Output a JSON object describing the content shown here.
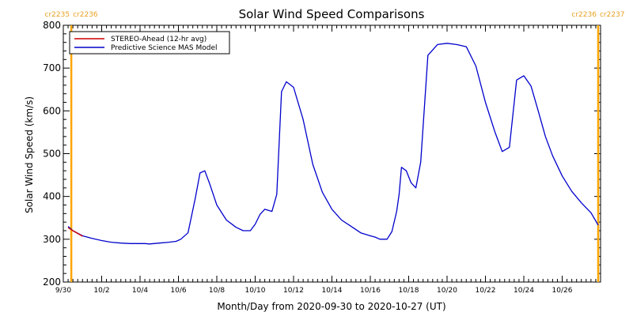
{
  "chart_data": {
    "type": "line",
    "title": "Solar Wind Speed Comparisons",
    "xlabel": "Month/Day from 2020-09-30 to 2020-10-27 (UT)",
    "ylabel": "Solar Wind Speed (km/s)",
    "ylim": [
      200,
      800
    ],
    "yticks": [
      200,
      300,
      400,
      500,
      600,
      700,
      800
    ],
    "xlim": [
      "2020-09-30",
      "2020-10-28"
    ],
    "xticks": [
      {
        "date": "2020-09-30",
        "label": "9/30"
      },
      {
        "date": "2020-10-02",
        "label": "10/2"
      },
      {
        "date": "2020-10-04",
        "label": "10/4"
      },
      {
        "date": "2020-10-06",
        "label": "10/6"
      },
      {
        "date": "2020-10-08",
        "label": "10/8"
      },
      {
        "date": "2020-10-10",
        "label": "10/10"
      },
      {
        "date": "2020-10-12",
        "label": "10/12"
      },
      {
        "date": "2020-10-14",
        "label": "10/14"
      },
      {
        "date": "2020-10-16",
        "label": "10/16"
      },
      {
        "date": "2020-10-18",
        "label": "10/18"
      },
      {
        "date": "2020-10-20",
        "label": "10/20"
      },
      {
        "date": "2020-10-22",
        "label": "10/22"
      },
      {
        "date": "2020-10-24",
        "label": "10/24"
      },
      {
        "date": "2020-10-26",
        "label": "10/26"
      }
    ],
    "legend": {
      "position": "top-left"
    },
    "carrington_markers": [
      {
        "date": "2020-09-30T10:00",
        "label_left": "cr2235",
        "label_right": "cr2236",
        "color": "#ffa500"
      },
      {
        "date": "2020-10-27T21:00",
        "label_left": "cr2236",
        "label_right": "cr2237",
        "color": "#ffa500"
      }
    ],
    "series": [
      {
        "name": "STEREO-Ahead (12-hr avg)",
        "color": "#cc0000",
        "x": [
          "2020-09-30T06:00",
          "2020-09-30T12:00",
          "2020-10-01T00:00"
        ],
        "values": [
          327,
          320,
          307
        ]
      },
      {
        "name": "Predictive Science MAS Model",
        "color": "#0000cc",
        "x": [
          "2020-09-30T06:00",
          "2020-09-30T12:00",
          "2020-10-01T00:00",
          "2020-10-01T12:00",
          "2020-10-02T00:00",
          "2020-10-02T12:00",
          "2020-10-03T00:00",
          "2020-10-03T12:00",
          "2020-10-04T00:00",
          "2020-10-04T06:00",
          "2020-10-04T12:00",
          "2020-10-05T00:00",
          "2020-10-05T12:00",
          "2020-10-05T21:00",
          "2020-10-06T03:00",
          "2020-10-06T12:00",
          "2020-10-06T21:00",
          "2020-10-07T03:00",
          "2020-10-07T09:00",
          "2020-10-07T15:00",
          "2020-10-08T00:00",
          "2020-10-08T12:00",
          "2020-10-09T00:00",
          "2020-10-09T09:00",
          "2020-10-09T18:00",
          "2020-10-10T00:00",
          "2020-10-10T06:00",
          "2020-10-10T12:00",
          "2020-10-10T21:00",
          "2020-10-11T03:00",
          "2020-10-11T09:00",
          "2020-10-11T15:00",
          "2020-10-12T00:00",
          "2020-10-12T12:00",
          "2020-10-13T00:00",
          "2020-10-13T12:00",
          "2020-10-14T00:00",
          "2020-10-14T12:00",
          "2020-10-15T00:00",
          "2020-10-15T12:00",
          "2020-10-16T00:00",
          "2020-10-16T06:00",
          "2020-10-16T12:00",
          "2020-10-16T21:00",
          "2020-10-17T03:00",
          "2020-10-17T09:00",
          "2020-10-17T12:00",
          "2020-10-17T15:00",
          "2020-10-17T21:00",
          "2020-10-18T03:00",
          "2020-10-18T09:00",
          "2020-10-18T15:00",
          "2020-10-19T00:00",
          "2020-10-19T12:00",
          "2020-10-20T00:00",
          "2020-10-20T12:00",
          "2020-10-21T00:00",
          "2020-10-21T12:00",
          "2020-10-22T00:00",
          "2020-10-22T12:00",
          "2020-10-22T21:00",
          "2020-10-23T06:00",
          "2020-10-23T15:00",
          "2020-10-24T00:00",
          "2020-10-24T09:00",
          "2020-10-24T18:00",
          "2020-10-25T03:00",
          "2020-10-25T12:00",
          "2020-10-26T00:00",
          "2020-10-26T12:00",
          "2020-10-27T00:00",
          "2020-10-27T12:00",
          "2020-10-27T21:00"
        ],
        "values": [
          330,
          320,
          308,
          302,
          297,
          293,
          291,
          290,
          290,
          290,
          289,
          291,
          293,
          295,
          300,
          315,
          395,
          455,
          460,
          430,
          380,
          345,
          328,
          320,
          320,
          335,
          358,
          370,
          365,
          405,
          645,
          668,
          655,
          580,
          475,
          410,
          370,
          345,
          330,
          315,
          308,
          305,
          300,
          300,
          318,
          365,
          405,
          468,
          460,
          432,
          420,
          480,
          730,
          755,
          758,
          755,
          750,
          705,
          620,
          550,
          505,
          515,
          672,
          682,
          658,
          600,
          540,
          495,
          448,
          412,
          385,
          362,
          333
        ]
      }
    ]
  }
}
